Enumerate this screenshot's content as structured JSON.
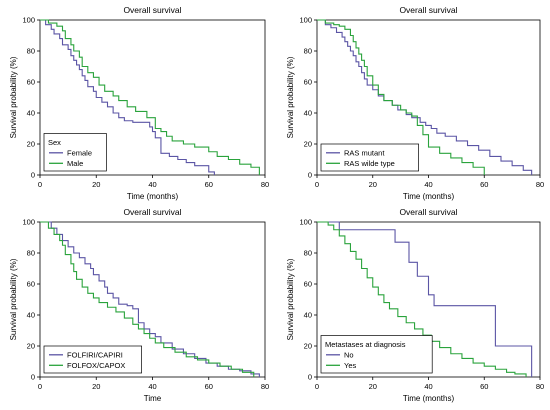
{
  "chart_data": [
    {
      "type": "line",
      "title": "Overall survival",
      "xlabel": "Time (months)",
      "ylabel": "Survival probability (%)",
      "xlim": [
        0,
        80
      ],
      "ylim": [
        0,
        100
      ],
      "xticks": [
        0,
        20,
        40,
        60,
        80
      ],
      "yticks": [
        0,
        20,
        40,
        60,
        80,
        100
      ],
      "grid": false,
      "legend": {
        "title": "Sex",
        "placement": "bottom-left"
      },
      "series": [
        {
          "name": "Female",
          "color": "#5b55a5",
          "x": [
            0,
            2,
            4,
            5,
            7,
            8,
            10,
            11,
            12,
            13,
            14,
            15,
            16,
            17,
            19,
            20,
            22,
            24,
            26,
            28,
            30,
            33,
            35,
            37,
            39,
            40,
            41,
            43,
            46,
            49,
            52,
            55,
            60,
            62
          ],
          "y": [
            100,
            97,
            94,
            91,
            88,
            84,
            81,
            77,
            74,
            71,
            68,
            64,
            61,
            57,
            54,
            50,
            47,
            44,
            40,
            37,
            35,
            34,
            34,
            34,
            31,
            28,
            24,
            14,
            12,
            10,
            8,
            6,
            2,
            0
          ]
        },
        {
          "name": "Male",
          "color": "#2aa33c",
          "x": [
            0,
            3,
            6,
            8,
            9,
            11,
            12,
            14,
            15,
            17,
            19,
            21,
            23,
            26,
            28,
            31,
            34,
            38,
            41,
            43,
            45,
            47,
            51,
            55,
            60,
            63,
            67,
            71,
            75,
            78
          ],
          "y": [
            100,
            98,
            96,
            93,
            88,
            84,
            80,
            76,
            70,
            66,
            63,
            58,
            54,
            51,
            48,
            44,
            41,
            37,
            30,
            28,
            25,
            22,
            20,
            18,
            15,
            12,
            10,
            7,
            5,
            0
          ]
        }
      ]
    },
    {
      "type": "line",
      "title": "Overall survival",
      "xlabel": "Time (months)",
      "ylabel": "Survival probability (%)",
      "xlim": [
        0,
        80
      ],
      "ylim": [
        0,
        100
      ],
      "xticks": [
        0,
        20,
        40,
        60,
        80
      ],
      "yticks": [
        0,
        20,
        40,
        60,
        80,
        100
      ],
      "grid": false,
      "legend": {
        "title": "",
        "placement": "bottom-left"
      },
      "series": [
        {
          "name": "RAS mutant",
          "color": "#5b55a5",
          "x": [
            0,
            3,
            5,
            7,
            9,
            10,
            11,
            12,
            13,
            14,
            15,
            16,
            17,
            18,
            20,
            22,
            24,
            27,
            29,
            32,
            34,
            37,
            39,
            41,
            43,
            46,
            50,
            54,
            58,
            62,
            66,
            70,
            74,
            77
          ],
          "y": [
            100,
            97,
            95,
            92,
            89,
            86,
            83,
            80,
            77,
            73,
            70,
            66,
            62,
            58,
            55,
            51,
            48,
            45,
            42,
            39,
            37,
            34,
            32,
            30,
            27,
            25,
            22,
            19,
            16,
            12,
            9,
            6,
            3,
            0
          ]
        },
        {
          "name": "RAS wilde type",
          "color": "#2aa33c",
          "x": [
            0,
            3,
            6,
            8,
            10,
            12,
            13,
            14,
            15,
            16,
            17,
            18,
            20,
            22,
            24,
            27,
            30,
            32,
            34,
            36,
            38,
            40,
            44,
            48,
            52,
            56,
            60
          ],
          "y": [
            100,
            98,
            97,
            96,
            94,
            90,
            86,
            82,
            78,
            74,
            70,
            64,
            58,
            52,
            48,
            45,
            42,
            40,
            38,
            32,
            26,
            18,
            14,
            11,
            8,
            5,
            0
          ]
        }
      ]
    },
    {
      "type": "line",
      "title": "Overall survival",
      "xlabel": "Time",
      "ylabel": "Survival probability (%)",
      "xlim": [
        0,
        80
      ],
      "ylim": [
        0,
        100
      ],
      "xticks": [
        0,
        20,
        40,
        60,
        80
      ],
      "yticks": [
        0,
        20,
        40,
        60,
        80,
        100
      ],
      "grid": false,
      "legend": {
        "title": "",
        "placement": "bottom-left"
      },
      "series": [
        {
          "name": "FOLFIRI/CAPIRI",
          "color": "#5b55a5",
          "x": [
            0,
            4,
            6,
            8,
            10,
            12,
            14,
            16,
            18,
            19,
            21,
            23,
            24,
            26,
            28,
            31,
            33,
            35,
            37,
            39,
            41,
            43,
            47,
            51,
            55,
            59,
            63,
            67,
            71,
            75,
            78
          ],
          "y": [
            100,
            96,
            92,
            88,
            84,
            80,
            77,
            73,
            70,
            66,
            62,
            58,
            54,
            51,
            47,
            46,
            44,
            35,
            31,
            28,
            26,
            22,
            18,
            15,
            12,
            9,
            7,
            5,
            4,
            2,
            0
          ]
        },
        {
          "name": "FOLFOX/CAPOX",
          "color": "#2aa33c",
          "x": [
            0,
            3,
            5,
            7,
            8,
            9,
            11,
            12,
            13,
            15,
            17,
            19,
            21,
            24,
            27,
            30,
            33,
            35,
            37,
            39,
            41,
            44,
            48,
            52,
            56,
            60,
            64,
            68,
            72,
            76
          ],
          "y": [
            100,
            96,
            92,
            88,
            85,
            79,
            73,
            68,
            63,
            58,
            54,
            51,
            48,
            45,
            42,
            38,
            34,
            31,
            28,
            25,
            22,
            19,
            16,
            13,
            11,
            9,
            7,
            5,
            3,
            0
          ]
        }
      ]
    },
    {
      "type": "line",
      "title": "Overall survival",
      "xlabel": "Time (months)",
      "ylabel": "Survival probability (%)",
      "xlim": [
        0,
        80
      ],
      "ylim": [
        0,
        100
      ],
      "xticks": [
        0,
        20,
        40,
        60,
        80
      ],
      "yticks": [
        0,
        20,
        40,
        60,
        80,
        100
      ],
      "grid": false,
      "legend": {
        "title": "Metastases at diagnosis",
        "placement": "bottom-left"
      },
      "series": [
        {
          "name": "No",
          "color": "#5b55a5",
          "x": [
            0,
            8,
            25,
            28,
            33,
            36,
            40,
            42,
            62,
            64,
            77
          ],
          "y": [
            100,
            95,
            95,
            87,
            74,
            65,
            53,
            46,
            46,
            20,
            0
          ]
        },
        {
          "name": "Yes",
          "color": "#2aa33c",
          "x": [
            0,
            4,
            6,
            8,
            10,
            12,
            14,
            16,
            18,
            20,
            22,
            24,
            26,
            29,
            32,
            35,
            38,
            41,
            44,
            48,
            52,
            56,
            60,
            64,
            68,
            71,
            75
          ],
          "y": [
            100,
            98,
            95,
            91,
            86,
            81,
            76,
            70,
            64,
            58,
            53,
            48,
            44,
            39,
            35,
            31,
            27,
            23,
            19,
            15,
            12,
            9,
            7,
            5,
            3,
            2,
            0
          ]
        }
      ]
    }
  ]
}
